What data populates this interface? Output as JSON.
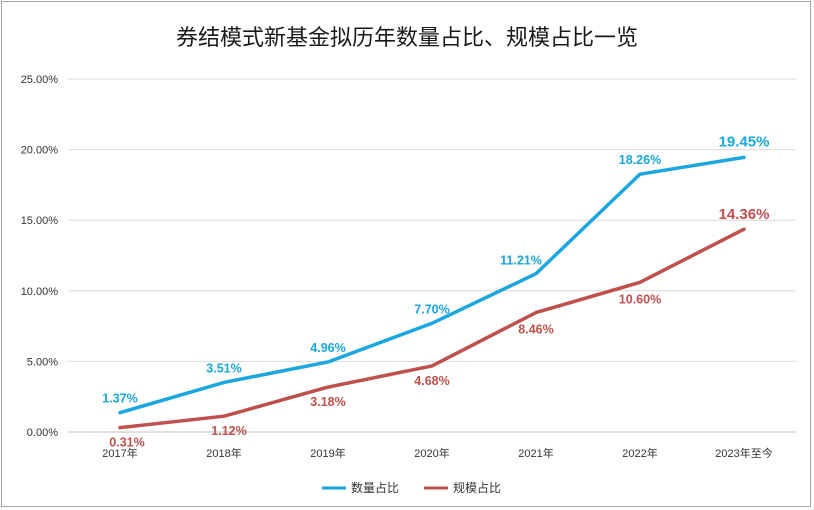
{
  "chart_data": {
    "type": "line",
    "title": "券结模式新基金拟历年数量占比、规模占比一览",
    "categories": [
      "2017年",
      "2018年",
      "2019年",
      "2020年",
      "2021年",
      "2022年",
      "2023年至今"
    ],
    "ylim": [
      0,
      25
    ],
    "yticks": [
      "0.00%",
      "5.00%",
      "10.00%",
      "15.00%",
      "20.00%",
      "25.00%"
    ],
    "grid": true,
    "legend_position": "bottom",
    "series": [
      {
        "name": "数量占比",
        "color": "#1aa7e0",
        "values": [
          1.37,
          3.51,
          4.96,
          7.7,
          11.21,
          18.26,
          19.45
        ],
        "labels": [
          "1.37%",
          "3.51%",
          "4.96%",
          "7.70%",
          "11.21%",
          "18.26%",
          "19.45%"
        ]
      },
      {
        "name": "规模占比",
        "color": "#c0504d",
        "values": [
          0.31,
          1.12,
          3.18,
          4.68,
          8.46,
          10.6,
          14.36
        ],
        "labels": [
          "0.31%",
          "1.12%",
          "3.18%",
          "4.68%",
          "8.46%",
          "10.60%",
          "14.36%"
        ]
      }
    ]
  }
}
